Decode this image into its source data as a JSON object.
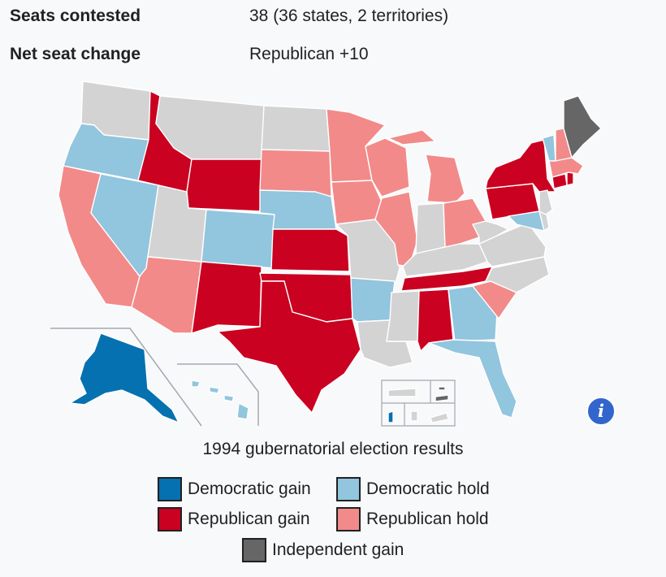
{
  "infobox": {
    "seats_label": "Seats contested",
    "seats_value": "38 (36 states, 2 territories)",
    "change_label": "Net seat change",
    "change_value": "Republican +10"
  },
  "map": {
    "caption": "1994 gubernatorial election results",
    "info_icon": "info-icon",
    "colors": {
      "dem_gain": "#0671b0",
      "dem_hold": "#92c5de",
      "rep_gain": "#ca0120",
      "rep_hold": "#f28a8a",
      "ind_gain": "#666666",
      "no_election": "#d3d3d3"
    }
  },
  "legend": [
    {
      "label": "Democratic gain",
      "color": "#0671b0"
    },
    {
      "label": "Democratic hold",
      "color": "#92c5de"
    },
    {
      "label": "Republican gain",
      "color": "#ca0120"
    },
    {
      "label": "Republican hold",
      "color": "#f28a8a"
    },
    {
      "label": "Independent gain",
      "color": "#666666"
    }
  ]
}
